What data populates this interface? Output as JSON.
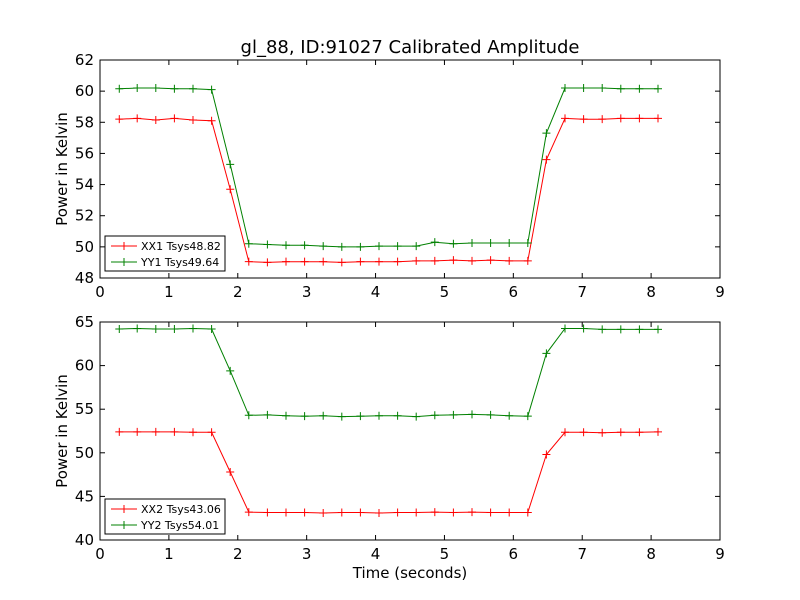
{
  "title": "gl_88, ID:91027 Calibrated Amplitude",
  "xlabel": "Time (seconds)",
  "chart_data": [
    {
      "type": "line",
      "ylabel": "Power in Kelvin",
      "xlim": [
        0,
        9
      ],
      "ylim": [
        48,
        62
      ],
      "xticks": [
        0,
        1,
        2,
        3,
        4,
        5,
        6,
        7,
        8,
        9
      ],
      "yticks": [
        48,
        50,
        52,
        54,
        56,
        58,
        60,
        62
      ],
      "grid": false,
      "legend_position": "lower-left",
      "x": [
        0.28,
        0.54,
        0.81,
        1.08,
        1.35,
        1.62,
        1.89,
        2.16,
        2.43,
        2.7,
        2.97,
        3.24,
        3.51,
        3.78,
        4.05,
        4.32,
        4.59,
        4.86,
        5.13,
        5.4,
        5.67,
        5.94,
        6.21,
        6.48,
        6.75,
        7.02,
        7.29,
        7.56,
        7.83,
        8.1
      ],
      "series": [
        {
          "name": "XX1 Tsys48.82",
          "color": "#ff0000",
          "values": [
            58.2,
            58.25,
            58.15,
            58.25,
            58.15,
            58.1,
            53.7,
            49.05,
            49.0,
            49.05,
            49.05,
            49.05,
            49.0,
            49.05,
            49.05,
            49.05,
            49.1,
            49.1,
            49.15,
            49.1,
            49.15,
            49.1,
            49.1,
            55.6,
            58.25,
            58.2,
            58.2,
            58.25,
            58.25,
            58.25
          ]
        },
        {
          "name": "YY1 Tsys49.64",
          "color": "#008000",
          "values": [
            60.15,
            60.2,
            60.2,
            60.15,
            60.15,
            60.1,
            55.3,
            50.2,
            50.15,
            50.1,
            50.1,
            50.05,
            50.0,
            50.0,
            50.05,
            50.05,
            50.05,
            50.3,
            50.2,
            50.25,
            50.25,
            50.25,
            50.25,
            57.3,
            60.2,
            60.2,
            60.2,
            60.15,
            60.15,
            60.15
          ]
        }
      ]
    },
    {
      "type": "line",
      "ylabel": "Power in Kelvin",
      "xlim": [
        0,
        9
      ],
      "ylim": [
        40,
        65
      ],
      "xticks": [
        0,
        1,
        2,
        3,
        4,
        5,
        6,
        7,
        8,
        9
      ],
      "yticks": [
        40,
        45,
        50,
        55,
        60,
        65
      ],
      "grid": false,
      "legend_position": "lower-left",
      "x": [
        0.28,
        0.54,
        0.81,
        1.08,
        1.35,
        1.62,
        1.89,
        2.16,
        2.43,
        2.7,
        2.97,
        3.24,
        3.51,
        3.78,
        4.05,
        4.32,
        4.59,
        4.86,
        5.13,
        5.4,
        5.67,
        5.94,
        6.21,
        6.48,
        6.75,
        7.02,
        7.29,
        7.56,
        7.83,
        8.1
      ],
      "series": [
        {
          "name": "XX2 Tsys43.06",
          "color": "#ff0000",
          "values": [
            52.4,
            52.4,
            52.4,
            52.4,
            52.35,
            52.35,
            47.8,
            43.2,
            43.15,
            43.15,
            43.15,
            43.1,
            43.15,
            43.15,
            43.1,
            43.15,
            43.15,
            43.2,
            43.15,
            43.2,
            43.15,
            43.15,
            43.15,
            49.8,
            52.35,
            52.35,
            52.3,
            52.35,
            52.35,
            52.4
          ]
        },
        {
          "name": "YY2 Tsys54.01",
          "color": "#008000",
          "values": [
            64.2,
            64.25,
            64.2,
            64.2,
            64.25,
            64.2,
            59.4,
            54.3,
            54.35,
            54.25,
            54.2,
            54.25,
            54.15,
            54.2,
            54.25,
            54.25,
            54.15,
            54.3,
            54.35,
            54.4,
            54.35,
            54.25,
            54.2,
            61.4,
            64.25,
            64.25,
            64.15,
            64.15,
            64.15,
            64.15
          ]
        }
      ]
    }
  ]
}
